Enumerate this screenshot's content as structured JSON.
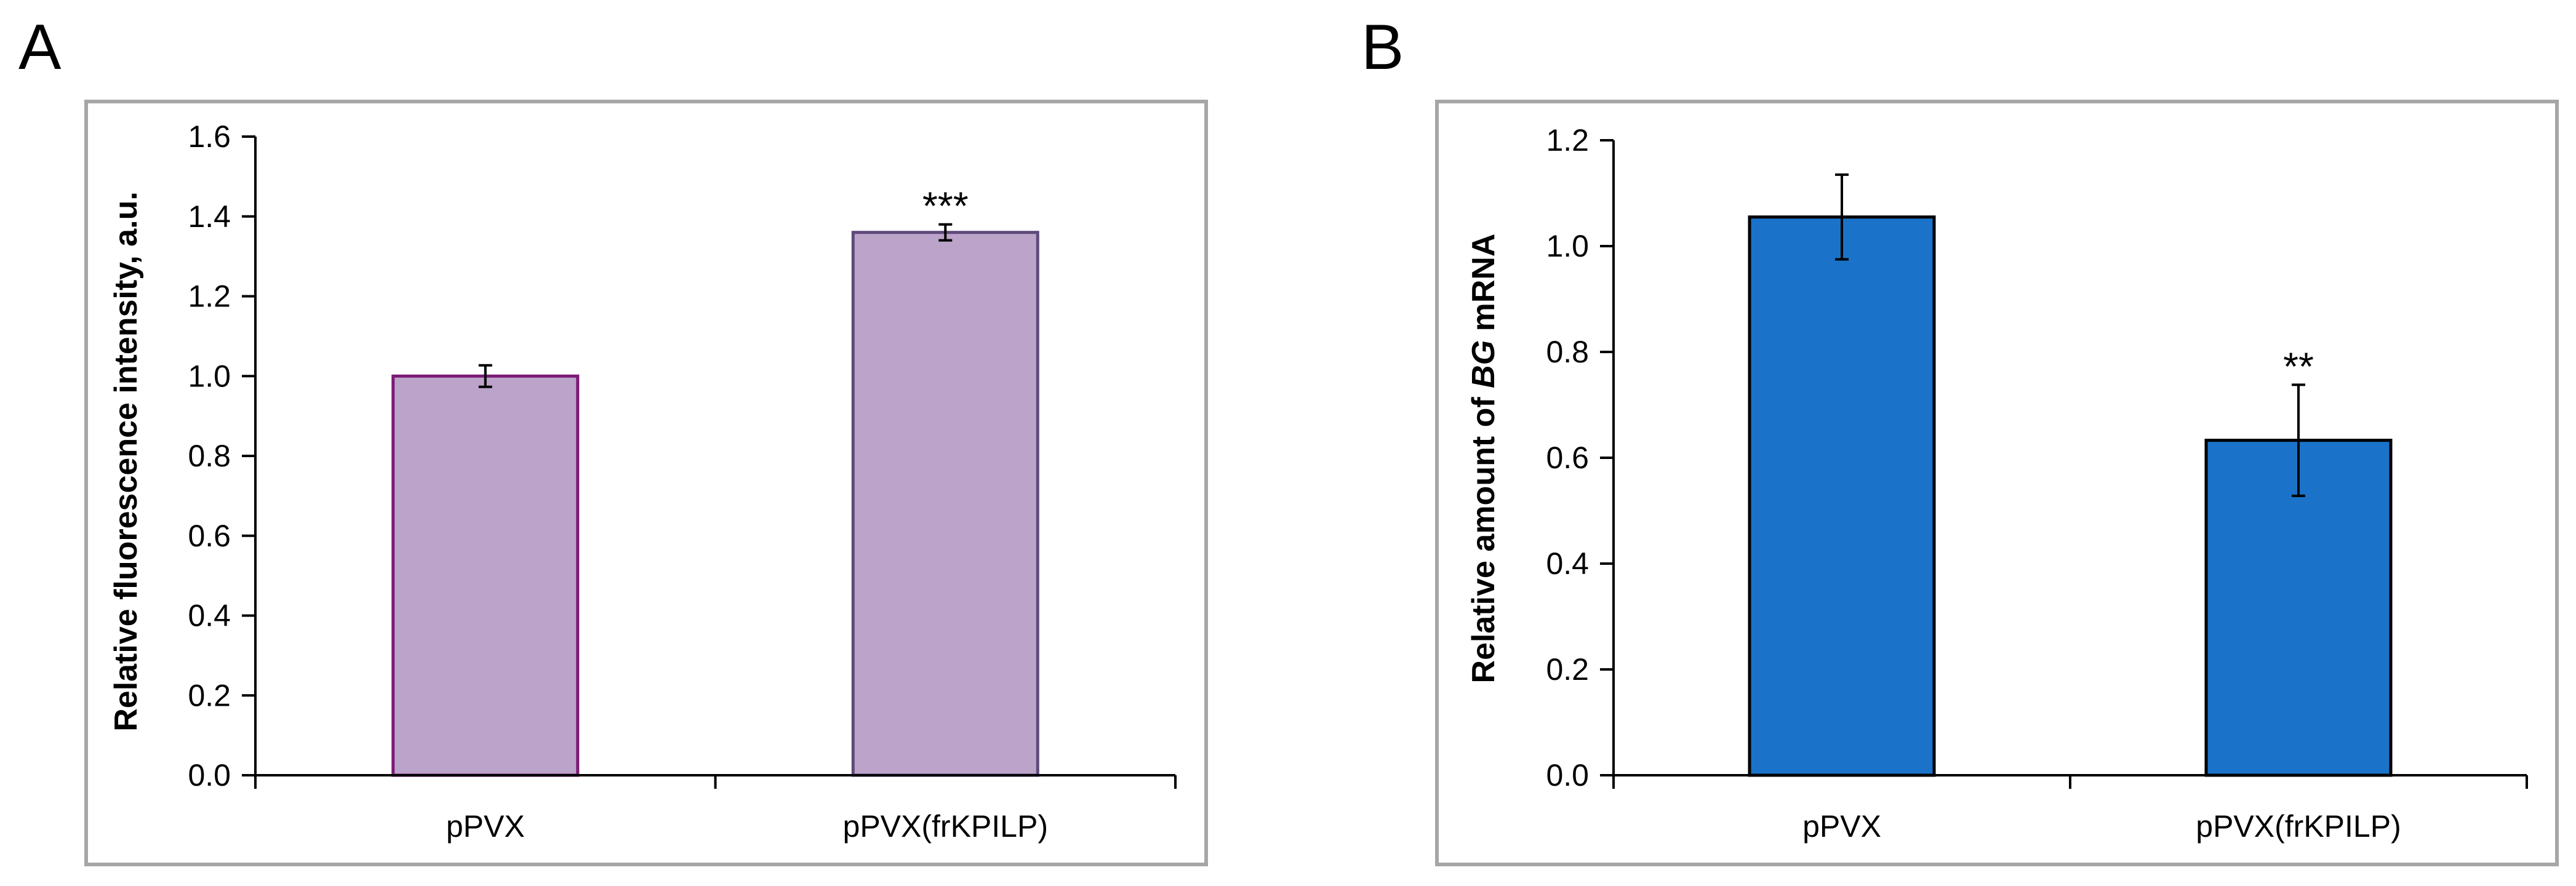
{
  "chart_data": [
    {
      "type": "bar",
      "panel": "A",
      "categories": [
        "pPVX",
        "pPVX(frKPILP)"
      ],
      "values": [
        1.0,
        1.36
      ],
      "errors": [
        0.027,
        0.02
      ],
      "significance": [
        "",
        "***"
      ],
      "xlabel": "",
      "ylabel": "Relative fluorescence intensity, a.u.",
      "ylim": [
        0,
        1.6
      ],
      "yticks": [
        "0.0",
        "0.2",
        "0.4",
        "0.6",
        "0.8",
        "1.0",
        "1.2",
        "1.4",
        "1.6"
      ],
      "grid": false,
      "colors": {
        "fill": "#bba3c9",
        "edge_first": "#7b1a77",
        "edge_rest": "#5e4a7a"
      }
    },
    {
      "type": "bar",
      "panel": "B",
      "categories": [
        "pPVX",
        "pPVX(frKPILP)"
      ],
      "values": [
        1.055,
        0.633
      ],
      "errors": [
        0.08,
        0.105
      ],
      "significance": [
        "",
        "**"
      ],
      "xlabel": "",
      "ylabel": {
        "pre": "Relative amount of ",
        "italic": "BG",
        "post": " mRNA"
      },
      "ylim": [
        0,
        1.2
      ],
      "yticks": [
        "0.0",
        "0.2",
        "0.4",
        "0.6",
        "0.8",
        "1.0",
        "1.2"
      ],
      "grid": false,
      "colors": {
        "fill": "#1a73c9",
        "edge_first": "#000000",
        "edge_rest": "#000000"
      }
    }
  ],
  "colors": {
    "frame": "#a6a6a6",
    "axis": "#000000"
  }
}
